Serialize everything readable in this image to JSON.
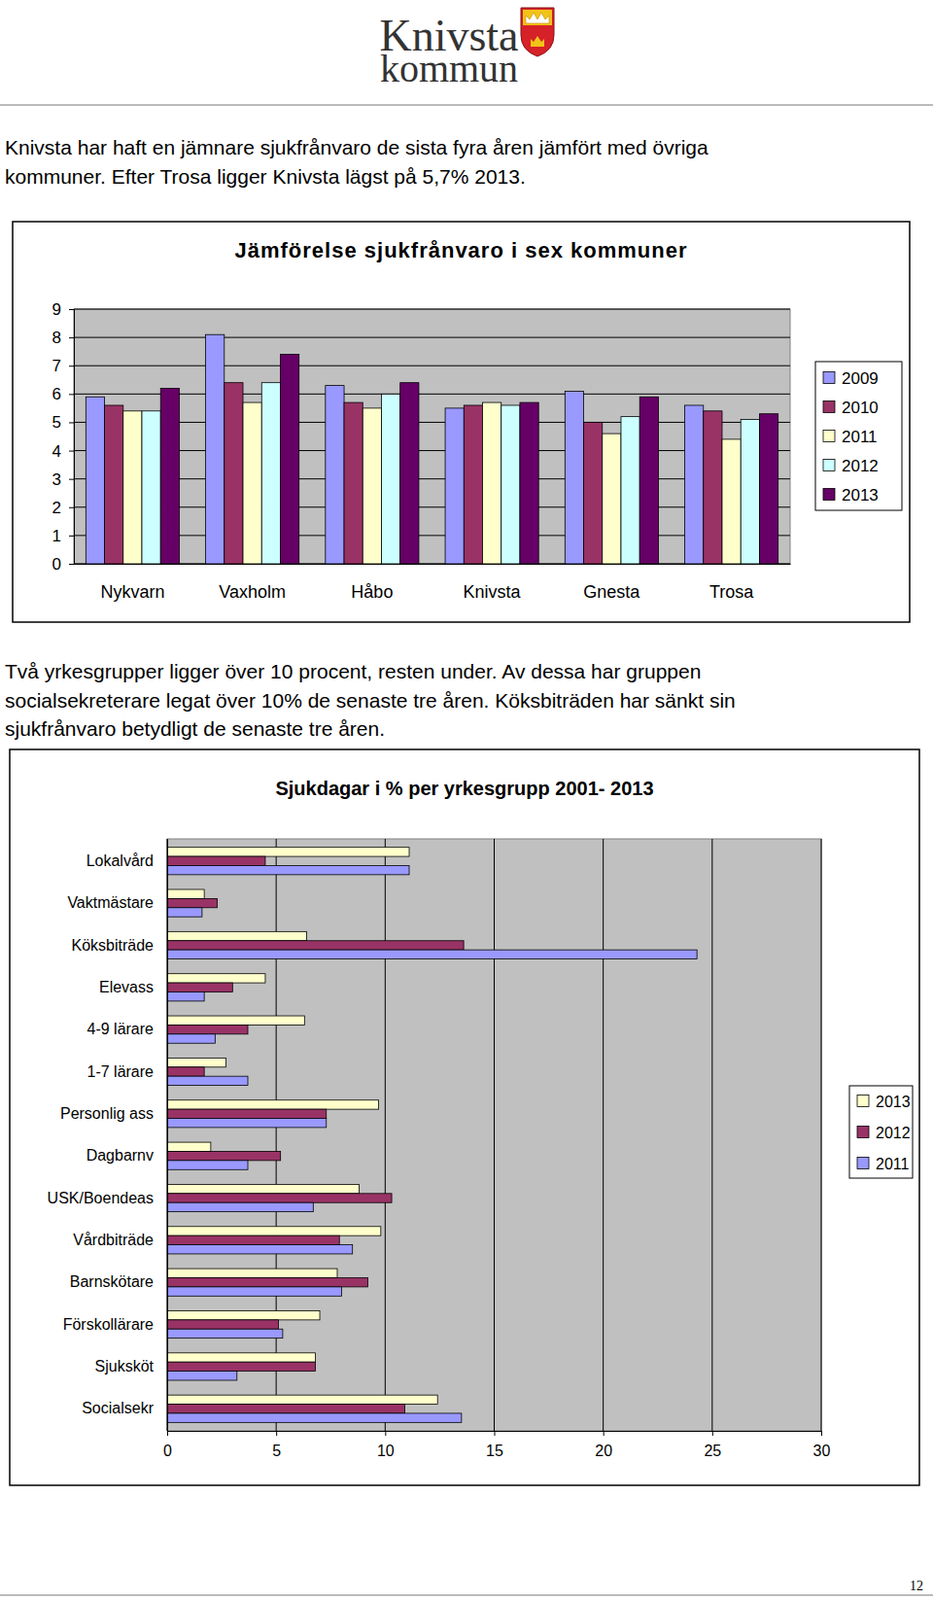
{
  "header": {
    "title_lines": [
      "Knivsta",
      "kommun"
    ]
  },
  "paragraphs": [
    [
      "Knivsta har haft en jämnare sjukfrånvaro de sista fyra åren jämfört med övriga",
      "kommuner. Efter Trosa ligger Knivsta lägst på 5,7% 2013."
    ],
    [
      "Två yrkesgrupper ligger över 10 procent, resten under. Av dessa har gruppen",
      "socialsekreterare legat över 10% de senaste tre åren. Köksbiträden har sänkt sin",
      "sjukfrånvaro betydligt de senaste tre åren."
    ]
  ],
  "chart_data": [
    {
      "type": "bar",
      "title": "Jämförelse sjukfrånvaro i sex kommuner",
      "categories": [
        "Nykvarn",
        "Vaxholm",
        "Håbo",
        "Knivsta",
        "Gnesta",
        "Trosa"
      ],
      "series": [
        {
          "name": "2009",
          "color": "#9999ff",
          "values": [
            5.9,
            8.1,
            6.3,
            5.5,
            6.1,
            5.6
          ]
        },
        {
          "name": "2010",
          "color": "#993366",
          "values": [
            5.6,
            6.4,
            5.7,
            5.6,
            5.0,
            5.4
          ]
        },
        {
          "name": "2011",
          "color": "#ffffcc",
          "values": [
            5.4,
            5.7,
            5.5,
            5.7,
            4.6,
            4.4
          ]
        },
        {
          "name": "2012",
          "color": "#ccffff",
          "values": [
            5.4,
            6.4,
            6.0,
            5.6,
            5.2,
            5.1
          ]
        },
        {
          "name": "2013",
          "color": "#660066",
          "values": [
            6.2,
            7.4,
            6.4,
            5.7,
            5.9,
            5.3
          ]
        }
      ],
      "ylim": [
        0,
        9
      ],
      "yticks": [
        0,
        1,
        2,
        3,
        4,
        5,
        6,
        7,
        8,
        9
      ],
      "grid": true,
      "legend": "right"
    },
    {
      "type": "bar",
      "orientation": "horizontal",
      "title": "Sjukdagar i % per yrkesgrupp 2001- 2013",
      "categories": [
        "Lokalvård",
        "Vaktmästare",
        "Köksbiträde",
        "Elevass",
        "4-9 lärare",
        "1-7 lärare",
        "Personlig ass",
        "Dagbarnv",
        "USK/Boendeas",
        "Vårdbiträde",
        "Barnskötare",
        "Förskollärare",
        "Sjuksköt",
        "Socialsekr"
      ],
      "series": [
        {
          "name": "2013",
          "color": "#ffffcc",
          "values": [
            11.1,
            1.7,
            6.4,
            4.5,
            6.3,
            2.7,
            9.7,
            2.0,
            8.8,
            9.8,
            7.8,
            7.0,
            6.8,
            12.4
          ]
        },
        {
          "name": "2012",
          "color": "#993366",
          "values": [
            4.5,
            2.3,
            13.6,
            3.0,
            3.7,
            1.7,
            7.3,
            5.2,
            10.3,
            7.9,
            9.2,
            5.1,
            6.8,
            10.9
          ]
        },
        {
          "name": "2011",
          "color": "#9999ff",
          "values": [
            11.1,
            1.6,
            24.3,
            1.7,
            2.2,
            3.7,
            7.3,
            3.7,
            6.7,
            8.5,
            8.0,
            5.3,
            3.2,
            13.5
          ]
        }
      ],
      "xlim": [
        0,
        30
      ],
      "xticks": [
        0,
        5,
        10,
        15,
        20,
        25,
        30
      ],
      "grid": true,
      "legend": "right"
    }
  ],
  "footer": {
    "page_number": "12"
  }
}
